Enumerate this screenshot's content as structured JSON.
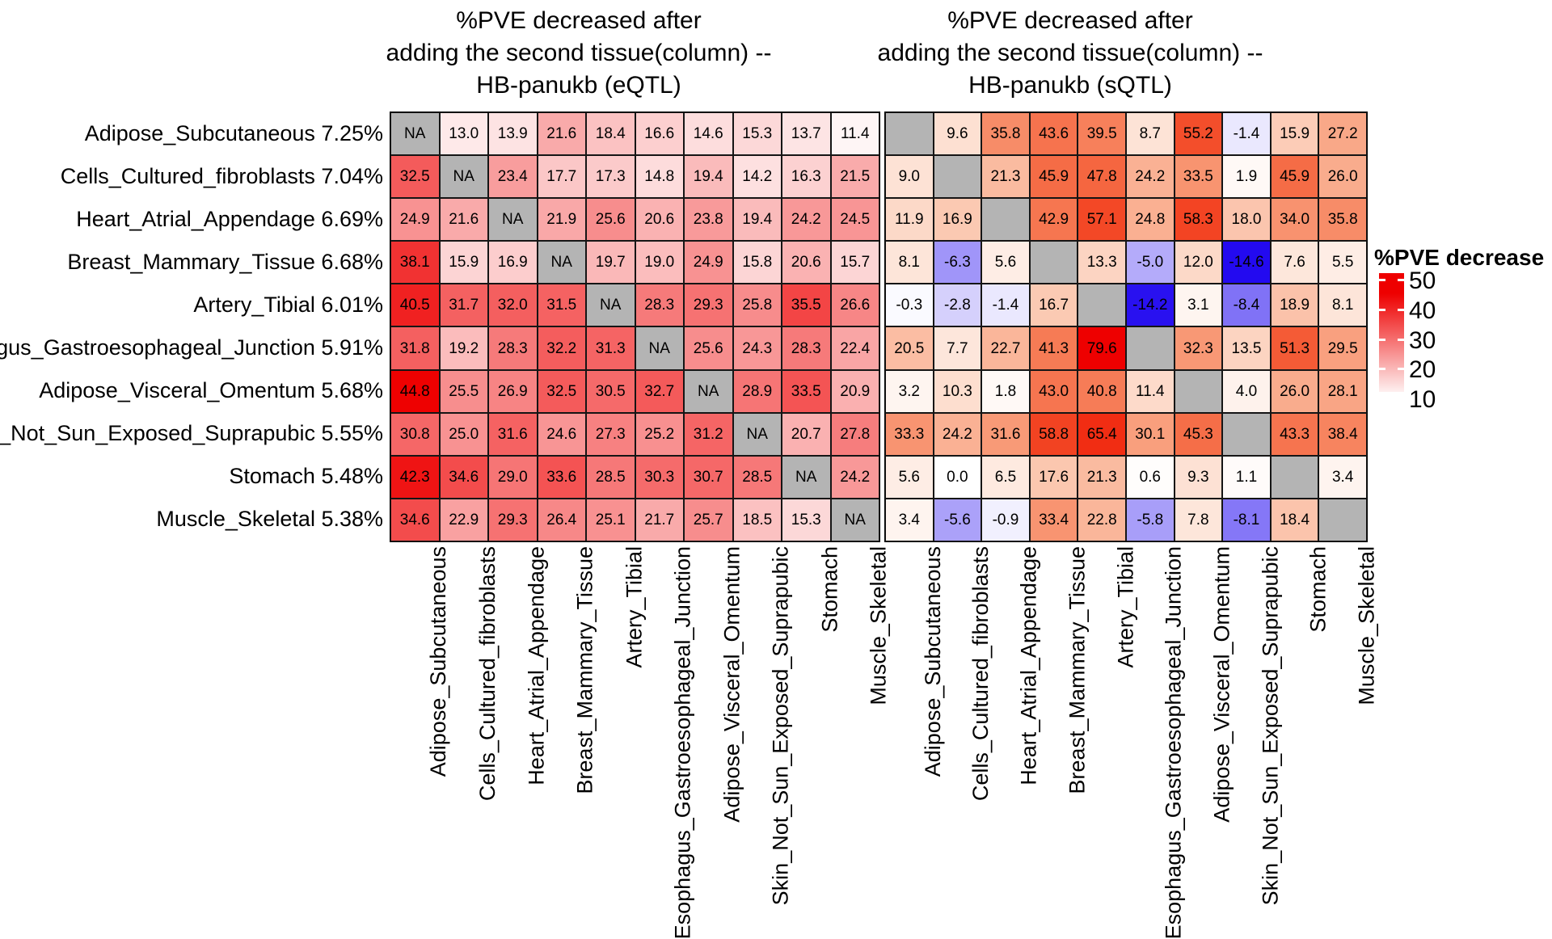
{
  "legend": {
    "title": "%PVE decrease",
    "ticks": [
      "50",
      "40",
      "30",
      "20",
      "10"
    ]
  },
  "chart_data": {
    "type": "heatmap",
    "description_note": "Two 10x10 tissue-by-tissue heatmaps; rows are the first tissue (with its %PVE), columns are the added second tissue; cells show %PVE decrease; diagonal is NA (gray).",
    "rows": [
      {
        "tissue": "Adipose_Subcutaneous",
        "pve": "7.25%"
      },
      {
        "tissue": "Cells_Cultured_fibroblasts",
        "pve": "7.04%"
      },
      {
        "tissue": "Heart_Atrial_Appendage",
        "pve": "6.69%"
      },
      {
        "tissue": "Breast_Mammary_Tissue",
        "pve": "6.68%"
      },
      {
        "tissue": "Artery_Tibial",
        "pve": "6.01%"
      },
      {
        "tissue": "Esophagus_Gastroesophageal_Junction",
        "pve": "5.91%"
      },
      {
        "tissue": "Adipose_Visceral_Omentum",
        "pve": "5.68%"
      },
      {
        "tissue": "Skin_Not_Sun_Exposed_Suprapubic",
        "pve": "5.55%"
      },
      {
        "tissue": "Stomach",
        "pve": "5.48%"
      },
      {
        "tissue": "Muscle_Skeletal",
        "pve": "5.38%"
      }
    ],
    "columns": [
      "Adipose_Subcutaneous",
      "Cells_Cultured_fibroblasts",
      "Heart_Atrial_Appendage",
      "Breast_Mammary_Tissue",
      "Artery_Tibial",
      "Esophagus_Gastroesophageal_Junction",
      "Adipose_Visceral_Omentum",
      "Skin_Not_Sun_Exposed_Suprapubic",
      "Stomach",
      "Muscle_Skeletal"
    ],
    "panels": [
      {
        "id": "eqtl",
        "title": "%PVE decreased after\nadding the second tissue(column) --\nHB-panukb (eQTL)",
        "na_label": "NA",
        "values": [
          [
            null,
            13.0,
            13.9,
            21.6,
            18.4,
            16.6,
            14.6,
            15.3,
            13.7,
            11.4
          ],
          [
            32.5,
            null,
            23.4,
            17.7,
            17.3,
            14.8,
            19.4,
            14.2,
            16.3,
            21.5
          ],
          [
            24.9,
            21.6,
            null,
            21.9,
            25.6,
            20.6,
            23.8,
            19.4,
            24.2,
            24.5
          ],
          [
            38.1,
            15.9,
            16.9,
            null,
            19.7,
            19.0,
            24.9,
            15.8,
            20.6,
            15.7
          ],
          [
            40.5,
            31.7,
            32.0,
            31.5,
            null,
            28.3,
            29.3,
            25.8,
            35.5,
            26.6
          ],
          [
            31.8,
            19.2,
            28.3,
            32.2,
            31.3,
            null,
            25.6,
            24.3,
            28.3,
            22.4
          ],
          [
            44.8,
            25.5,
            26.9,
            32.5,
            30.5,
            32.7,
            null,
            28.9,
            33.5,
            20.9
          ],
          [
            30.8,
            25.0,
            31.6,
            24.6,
            27.3,
            25.2,
            31.2,
            null,
            20.7,
            27.8
          ],
          [
            42.3,
            34.6,
            29.0,
            33.6,
            28.5,
            30.3,
            30.7,
            28.5,
            null,
            24.2
          ],
          [
            34.6,
            22.9,
            29.3,
            26.4,
            25.1,
            21.7,
            25.7,
            18.5,
            15.3,
            null
          ]
        ]
      },
      {
        "id": "sqtl",
        "title": "%PVE decreased after\nadding the second tissue(column) --\nHB-panukb (sQTL)",
        "na_label": "",
        "values": [
          [
            null,
            9.6,
            35.8,
            43.6,
            39.5,
            8.7,
            55.2,
            -1.4,
            15.9,
            27.2
          ],
          [
            9.0,
            null,
            21.3,
            45.9,
            47.8,
            24.2,
            33.5,
            1.9,
            45.9,
            26.0
          ],
          [
            11.9,
            16.9,
            null,
            42.9,
            57.1,
            24.8,
            58.3,
            18.0,
            34.0,
            35.8
          ],
          [
            8.1,
            -6.3,
            5.6,
            null,
            13.3,
            -5.0,
            12.0,
            -14.6,
            7.6,
            5.5
          ],
          [
            -0.3,
            -2.8,
            -1.4,
            16.7,
            null,
            -14.2,
            3.1,
            -8.4,
            18.9,
            8.1
          ],
          [
            20.5,
            7.7,
            22.7,
            41.3,
            79.6,
            null,
            32.3,
            13.5,
            51.3,
            29.5
          ],
          [
            3.2,
            10.3,
            1.8,
            43.0,
            40.8,
            11.4,
            null,
            4.0,
            26.0,
            28.1
          ],
          [
            33.3,
            24.2,
            31.6,
            58.8,
            65.4,
            30.1,
            45.3,
            null,
            43.3,
            38.4
          ],
          [
            5.6,
            0.0,
            6.5,
            17.6,
            21.3,
            0.6,
            9.3,
            1.1,
            null,
            3.4
          ],
          [
            3.4,
            -5.6,
            -0.9,
            33.4,
            22.8,
            -5.8,
            7.8,
            -8.1,
            18.4,
            null
          ]
        ]
      }
    ],
    "colors": {
      "na_cell": "#b4b4b4",
      "max_red": "#ee0000",
      "max_blue": "#230af0",
      "left_scale_domain": [
        10,
        45
      ],
      "right_positive_max": 79.6,
      "right_negative_min": -14.6
    },
    "legend_title": "%PVE decrease",
    "legend_ticks": [
      50,
      40,
      30,
      20,
      10
    ],
    "grid": true
  }
}
